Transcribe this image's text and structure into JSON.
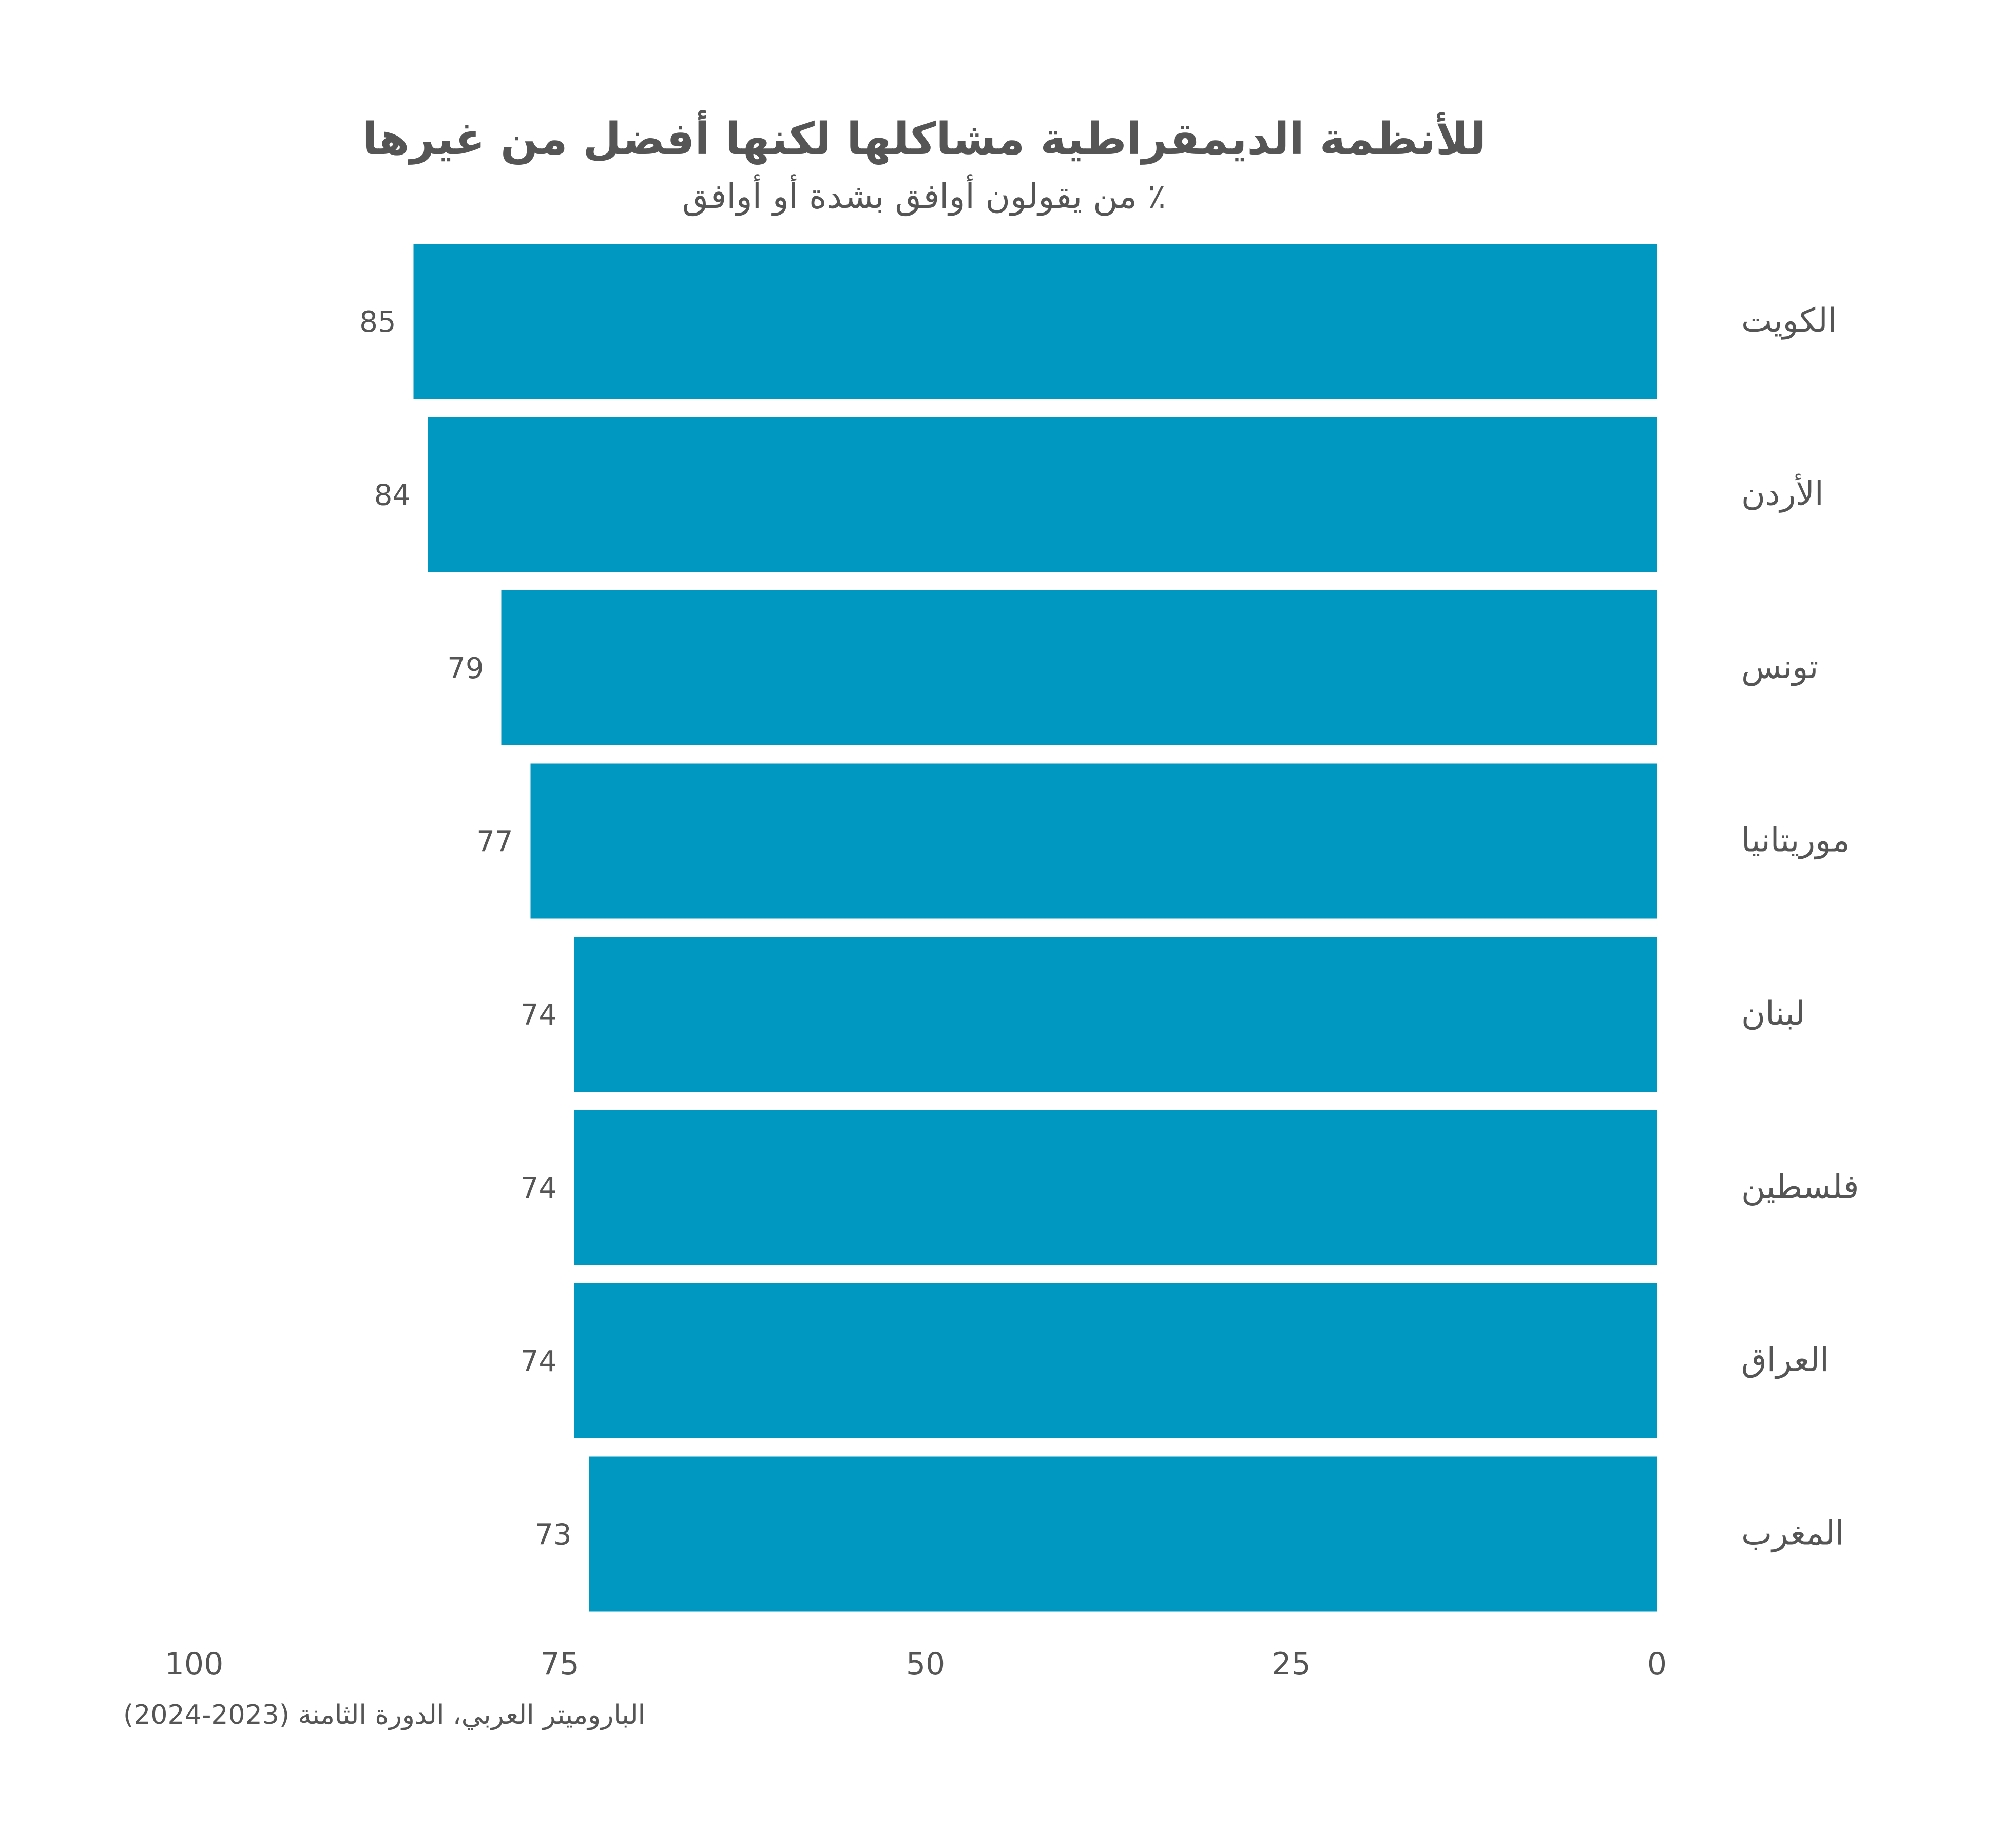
{
  "chart_data": {
    "type": "bar",
    "orientation": "horizontal",
    "title": "للأنظمة الديمقراطية مشاكلها لكنها أفضل من غيرها",
    "subtitle": "٪ من يقولون أوافق بشدة أو أوافق",
    "categories": [
      "الكويت",
      "الأردن",
      "تونس",
      "موريتانيا",
      "لبنان",
      "فلسطين",
      "العراق",
      "المغرب"
    ],
    "values": [
      85,
      84,
      79,
      77,
      74,
      74,
      74,
      73
    ],
    "xlim": [
      0,
      100
    ],
    "x_reversed": true,
    "x_ticks": [
      0,
      25,
      50,
      75,
      100
    ],
    "x_tick_labels": [
      "0",
      "25",
      "50",
      "75",
      "100"
    ],
    "grid": false,
    "bar_color": "#0097C0",
    "source": "الباروميتر العربي، الدورة الثامنة (2023-2024)"
  }
}
